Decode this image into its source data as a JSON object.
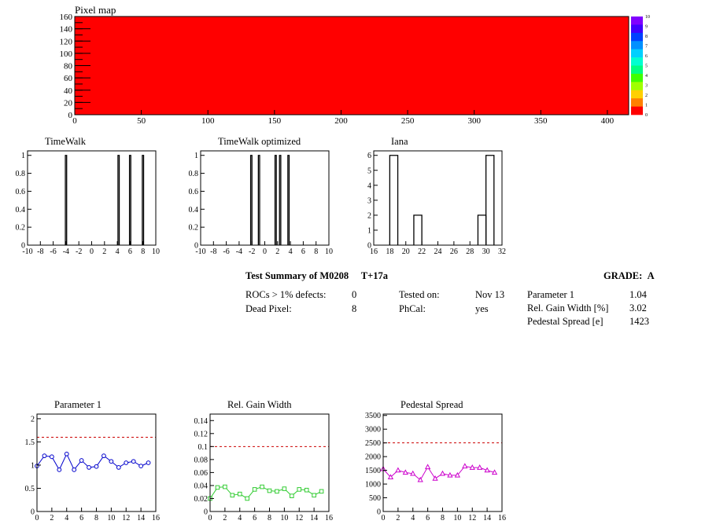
{
  "pixel_map": {
    "title": "Pixel map",
    "fill_color": "#ff0000",
    "x_ticks": [
      "0",
      "50",
      "100",
      "150",
      "200",
      "250",
      "300",
      "350",
      "400"
    ],
    "y_ticks": [
      "0",
      "20",
      "40",
      "60",
      "80",
      "100",
      "120",
      "140",
      "160"
    ],
    "palette_labels": [
      "0",
      "1",
      "2",
      "3",
      "4",
      "5",
      "6",
      "7",
      "8",
      "9",
      "10"
    ],
    "palette_colors": [
      "#8000ff",
      "#4000ff",
      "#0040ff",
      "#0090ff",
      "#00d0ff",
      "#00ffd0",
      "#00ff80",
      "#40ff00",
      "#a0ff00",
      "#ffd000",
      "#ff8000",
      "#ff0000"
    ]
  },
  "summary": {
    "title": "Test Summary of M0208",
    "temp": "T+17a",
    "grade_label": "GRADE:",
    "grade": "A",
    "rocs_label": "ROCs > 1% defects:",
    "rocs_value": "0",
    "dead_label": "Dead Pixel:",
    "dead_value": "8",
    "tested_label": "Tested on:",
    "tested_value": "Nov 13",
    "phcal_label": "PhCal:",
    "phcal_value": "yes",
    "param1_label": "Parameter 1",
    "param1_value": "1.04",
    "gain_label": "Rel. Gain Width [%]",
    "gain_value": "3.02",
    "ped_label": "Pedestal Spread [e]",
    "ped_value": "1423"
  },
  "chart_data": [
    {
      "type": "bar",
      "title": "TimeWalk",
      "xlim": [
        -10,
        10
      ],
      "ylim": [
        0,
        1.05
      ],
      "x_ticks": [
        "-10",
        "-8",
        "-6",
        "-4",
        "-2",
        "0",
        "2",
        "4",
        "6",
        "8",
        "10"
      ],
      "y_ticks": [
        "0",
        "0.2",
        "0.4",
        "0.6",
        "0.8",
        "1"
      ],
      "bars": [
        {
          "x0": -4.1,
          "x1": -3.9,
          "y": 1
        },
        {
          "x0": 4.1,
          "x1": 4.3,
          "y": 1
        },
        {
          "x0": 5.9,
          "x1": 6.1,
          "y": 1
        },
        {
          "x0": 7.9,
          "x1": 8.1,
          "y": 1
        }
      ]
    },
    {
      "type": "bar",
      "title": "TimeWalk optimized",
      "xlim": [
        -10,
        10
      ],
      "ylim": [
        0,
        1.05
      ],
      "x_ticks": [
        "-10",
        "-8",
        "-6",
        "-4",
        "-2",
        "0",
        "2",
        "4",
        "6",
        "8",
        "10"
      ],
      "y_ticks": [
        "0",
        "0.2",
        "0.4",
        "0.6",
        "0.8",
        "1"
      ],
      "bars": [
        {
          "x0": -2.2,
          "x1": -2.0,
          "y": 1
        },
        {
          "x0": -1.0,
          "x1": -0.8,
          "y": 1
        },
        {
          "x0": 1.6,
          "x1": 1.8,
          "y": 1
        },
        {
          "x0": 2.3,
          "x1": 2.5,
          "y": 1
        },
        {
          "x0": 3.6,
          "x1": 3.8,
          "y": 1
        }
      ]
    },
    {
      "type": "bar",
      "title": "Iana",
      "xlim": [
        16,
        32
      ],
      "ylim": [
        0,
        6.3
      ],
      "x_ticks": [
        "16",
        "18",
        "20",
        "22",
        "24",
        "26",
        "28",
        "30",
        "32"
      ],
      "y_ticks": [
        "0",
        "1",
        "2",
        "3",
        "4",
        "5",
        "6"
      ],
      "bars": [
        {
          "x0": 18,
          "x1": 19,
          "y": 6
        },
        {
          "x0": 21,
          "x1": 22,
          "y": 2
        },
        {
          "x0": 29,
          "x1": 30,
          "y": 2
        },
        {
          "x0": 30,
          "x1": 31,
          "y": 6
        }
      ]
    },
    {
      "type": "line",
      "title": "Parameter 1",
      "color": "#0000cc",
      "marker": "circle",
      "xlim": [
        0,
        16
      ],
      "ylim": [
        0,
        2.1
      ],
      "ref_line": 1.6,
      "x_ticks": [
        "0",
        "2",
        "4",
        "6",
        "8",
        "10",
        "12",
        "14",
        "16"
      ],
      "y_ticks": [
        "0",
        "0.5",
        "1",
        "1.5",
        "2"
      ],
      "x": [
        0,
        1,
        2,
        3,
        4,
        5,
        6,
        7,
        8,
        9,
        10,
        11,
        12,
        13,
        14,
        15
      ],
      "y": [
        0.98,
        1.2,
        1.18,
        0.9,
        1.24,
        0.9,
        1.1,
        0.95,
        0.97,
        1.2,
        1.08,
        0.95,
        1.05,
        1.08,
        0.98,
        1.05
      ]
    },
    {
      "type": "line",
      "title": "Rel. Gain Width",
      "color": "#33cc33",
      "marker": "square",
      "xlim": [
        0,
        16
      ],
      "ylim": [
        0,
        0.15
      ],
      "ref_line": 0.1,
      "x_ticks": [
        "0",
        "2",
        "4",
        "6",
        "8",
        "10",
        "12",
        "14",
        "16"
      ],
      "y_ticks": [
        "0",
        "0.02",
        "0.04",
        "0.06",
        "0.08",
        "0.1",
        "0.12",
        "0.14"
      ],
      "x": [
        0,
        1,
        2,
        3,
        4,
        5,
        6,
        7,
        8,
        9,
        10,
        11,
        12,
        13,
        14,
        15
      ],
      "y": [
        0.02,
        0.037,
        0.038,
        0.025,
        0.027,
        0.02,
        0.034,
        0.038,
        0.032,
        0.031,
        0.035,
        0.024,
        0.034,
        0.033,
        0.025,
        0.031
      ]
    },
    {
      "type": "line",
      "title": "Pedestal Spread",
      "color": "#cc00cc",
      "marker": "triangle",
      "xlim": [
        0,
        16
      ],
      "ylim": [
        0,
        3550
      ],
      "ref_line": 2500,
      "x_ticks": [
        "0",
        "2",
        "4",
        "6",
        "8",
        "10",
        "12",
        "14",
        "16"
      ],
      "y_ticks": [
        "0",
        "500",
        "1000",
        "1500",
        "2000",
        "2500",
        "3000",
        "3500"
      ],
      "x": [
        0,
        1,
        2,
        3,
        4,
        5,
        6,
        7,
        8,
        9,
        10,
        11,
        12,
        13,
        14,
        15
      ],
      "y": [
        1550,
        1250,
        1500,
        1420,
        1380,
        1150,
        1620,
        1200,
        1380,
        1320,
        1320,
        1650,
        1600,
        1600,
        1500,
        1420
      ]
    }
  ]
}
